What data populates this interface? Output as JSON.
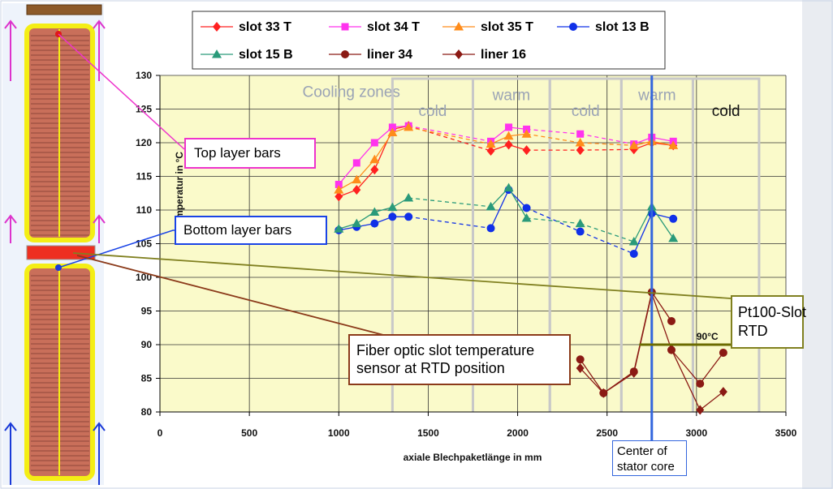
{
  "colors": {
    "plot_bg": "#fafaca",
    "grid": "#333333",
    "zone_box": "#c8c8c8",
    "zone_text": "#9aa3b5",
    "slot33T": "#ff2020",
    "slot34T": "#ff33ee",
    "slot35T": "#ff8c1a",
    "slot13B": "#1030e8",
    "slot15B": "#2a9a7a",
    "liner": "#8b1a14",
    "center_line": "#3366dd",
    "callout_top": "#ee33cc",
    "callout_bottom": "#1a44e6",
    "callout_fiber": "#8b3a1a",
    "callout_rtd": "#808020"
  },
  "annotations": {
    "top_layer": "Top layer bars",
    "bottom_layer": "Bottom layer bars",
    "fiber_line1": "Fiber optic slot temperature",
    "fiber_line2": "sensor at RTD position",
    "rtd_line1": "Pt100-Slot",
    "rtd_line2": "RTD",
    "center_line1": "Center of",
    "center_line2": "stator core",
    "threshold": "90°C"
  },
  "chart_data": {
    "type": "line",
    "title": "",
    "xlabel": "axiale Blechpaketlänge in mm",
    "ylabel": "Temperatur in °C",
    "xlim": [
      0,
      3500
    ],
    "ylim": [
      80,
      130
    ],
    "xticks": [
      0,
      500,
      1000,
      1500,
      2000,
      2500,
      3000,
      3500
    ],
    "yticks": [
      80,
      85,
      90,
      95,
      100,
      105,
      110,
      115,
      120,
      125,
      130
    ],
    "grid": true,
    "legend_position": "top",
    "zones_label": "Cooling zones",
    "zones": [
      {
        "label": "cold",
        "x": [
          1300,
          1750
        ]
      },
      {
        "label": "warm",
        "x": [
          1750,
          2180
        ]
      },
      {
        "label": "cold",
        "x": [
          2180,
          2580
        ]
      },
      {
        "label": "warm",
        "x": [
          2580,
          2980
        ]
      },
      {
        "label": "cold",
        "x": [
          2980,
          3350
        ]
      }
    ],
    "center_x": 2750,
    "threshold": 90,
    "series": [
      {
        "name": "slot 33 T",
        "marker": "diamond",
        "colorKey": "slot33T",
        "dash": false,
        "segments": [
          [
            [
              1000,
              112
            ],
            [
              1100,
              113
            ],
            [
              1200,
              116
            ],
            [
              1300,
              122
            ],
            [
              1390,
              122.5
            ]
          ],
          [
            [
              1850,
              118.8
            ],
            [
              1950,
              119.7
            ],
            [
              2050,
              118.9
            ]
          ],
          [
            [
              2350,
              118.9
            ]
          ],
          [
            [
              2650,
              119
            ],
            [
              2750,
              120
            ],
            [
              2870,
              119.6
            ]
          ]
        ],
        "links": [
          [
            [
              1390,
              122.5
            ],
            [
              1850,
              118.8
            ]
          ],
          [
            [
              2050,
              118.9
            ],
            [
              2350,
              118.9
            ]
          ],
          [
            [
              2350,
              118.9
            ],
            [
              2650,
              119
            ]
          ]
        ]
      },
      {
        "name": "slot 34 T",
        "marker": "square",
        "colorKey": "slot34T",
        "dash": false,
        "segments": [
          [
            [
              1000,
              113.8
            ],
            [
              1100,
              117
            ],
            [
              1200,
              120
            ],
            [
              1300,
              122.3
            ],
            [
              1390,
              122.5
            ]
          ],
          [
            [
              1850,
              120.2
            ],
            [
              1950,
              122.3
            ],
            [
              2050,
              122
            ]
          ],
          [
            [
              2350,
              121.3
            ]
          ],
          [
            [
              2650,
              119.8
            ],
            [
              2750,
              120.8
            ],
            [
              2870,
              120.2
            ]
          ]
        ],
        "links": [
          [
            [
              1390,
              122.5
            ],
            [
              1850,
              120.2
            ]
          ],
          [
            [
              2050,
              122
            ],
            [
              2350,
              121.3
            ]
          ],
          [
            [
              2350,
              121.3
            ],
            [
              2650,
              119.8
            ]
          ]
        ]
      },
      {
        "name": "slot 35 T",
        "marker": "triangle",
        "colorKey": "slot35T",
        "dash": false,
        "segments": [
          [
            [
              1000,
              113
            ],
            [
              1100,
              114.5
            ],
            [
              1200,
              117.5
            ],
            [
              1300,
              121.5
            ],
            [
              1390,
              122.3
            ]
          ],
          [
            [
              1850,
              119.8
            ],
            [
              1950,
              121
            ],
            [
              2050,
              121.3
            ]
          ],
          [
            [
              2350,
              120
            ]
          ],
          [
            [
              2650,
              119.6
            ],
            [
              2750,
              120.2
            ],
            [
              2870,
              119.6
            ]
          ]
        ],
        "links": [
          [
            [
              1390,
              122.3
            ],
            [
              1850,
              119.8
            ]
          ],
          [
            [
              2050,
              121.3
            ],
            [
              2350,
              120
            ]
          ],
          [
            [
              2350,
              120
            ],
            [
              2650,
              119.6
            ]
          ]
        ]
      },
      {
        "name": "slot 13 B",
        "marker": "circle",
        "colorKey": "slot13B",
        "dash": false,
        "segments": [
          [
            [
              1000,
              107
            ],
            [
              1100,
              107.5
            ],
            [
              1200,
              108
            ],
            [
              1300,
              109
            ],
            [
              1390,
              109
            ]
          ],
          [
            [
              1850,
              107.3
            ],
            [
              1950,
              113
            ],
            [
              2050,
              110.3
            ]
          ],
          [
            [
              2350,
              106.8
            ]
          ],
          [
            [
              2650,
              103.5
            ],
            [
              2750,
              109.5
            ],
            [
              2870,
              108.7
            ]
          ]
        ],
        "links": [
          [
            [
              1390,
              109
            ],
            [
              1850,
              107.3
            ]
          ],
          [
            [
              2050,
              110.3
            ],
            [
              2350,
              106.8
            ]
          ],
          [
            [
              2350,
              106.8
            ],
            [
              2650,
              103.5
            ]
          ]
        ]
      },
      {
        "name": "slot 15 B",
        "marker": "triangle",
        "colorKey": "slot15B",
        "dash": false,
        "segments": [
          [
            [
              1000,
              107.2
            ],
            [
              1100,
              108
            ],
            [
              1200,
              109.7
            ],
            [
              1300,
              110.4
            ],
            [
              1390,
              111.8
            ]
          ],
          [
            [
              1850,
              110.5
            ],
            [
              1950,
              113.3
            ],
            [
              2050,
              108.8
            ]
          ],
          [
            [
              2350,
              108
            ]
          ],
          [
            [
              2650,
              105.3
            ],
            [
              2750,
              110.5
            ],
            [
              2870,
              105.8
            ]
          ]
        ],
        "links": [
          [
            [
              1390,
              111.8
            ],
            [
              1850,
              110.5
            ]
          ],
          [
            [
              2050,
              108.8
            ],
            [
              2350,
              108
            ]
          ],
          [
            [
              2350,
              108
            ],
            [
              2650,
              105.3
            ]
          ]
        ]
      },
      {
        "name": "liner 34",
        "marker": "circle",
        "colorKey": "liner",
        "dash": false,
        "segments": [
          [
            [
              2350,
              87.8
            ],
            [
              2480,
              82.8
            ],
            [
              2650,
              86
            ],
            [
              2750,
              97.8
            ],
            [
              2860,
              93.5
            ]
          ],
          [
            [
              2860,
              89.2
            ],
            [
              3020,
              84.2
            ],
            [
              3150,
              88.8
            ]
          ]
        ],
        "links": []
      },
      {
        "name": "liner 16",
        "marker": "diamond",
        "colorKey": "liner",
        "dash": false,
        "segments": [
          [
            [
              2350,
              86.5
            ],
            [
              2480,
              82.8
            ],
            [
              2650,
              85.8
            ],
            [
              2750,
              97.6
            ],
            [
              2860,
              89.3
            ]
          ],
          [
            [
              2860,
              89.3
            ],
            [
              3020,
              80.3
            ],
            [
              3150,
              83
            ]
          ]
        ],
        "links": []
      }
    ]
  }
}
